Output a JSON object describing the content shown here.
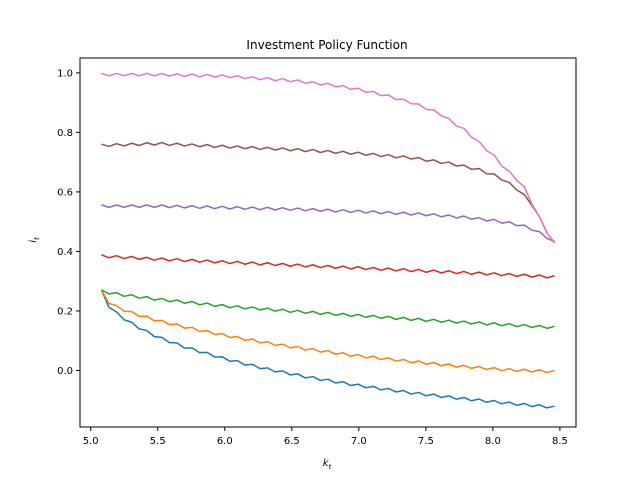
{
  "chart_data": {
    "type": "line",
    "title": "Investment Policy Function",
    "xlabel_main": "k",
    "xlabel_sub": "t",
    "ylabel_main": "i",
    "ylabel_sub": "t",
    "xlim": [
      4.92,
      8.62
    ],
    "ylim": [
      -0.19,
      1.05
    ],
    "xticks": [
      5.0,
      5.5,
      6.0,
      6.5,
      7.0,
      7.5,
      8.0,
      8.5
    ],
    "xtick_labels": [
      "5.0",
      "5.5",
      "6.0",
      "6.5",
      "7.0",
      "7.5",
      "8.0",
      "8.5"
    ],
    "yticks": [
      0.0,
      0.2,
      0.4,
      0.6,
      0.8,
      1.0
    ],
    "ytick_labels": [
      "0.0",
      "0.2",
      "0.4",
      "0.6",
      "0.8",
      "1.0"
    ],
    "grid": false,
    "legend": "none",
    "series": [
      {
        "color": "#1f77b4",
        "x": [
          5.08,
          5.1,
          5.15,
          5.2,
          5.3,
          5.4,
          5.5,
          5.7,
          6.0,
          6.3,
          6.6,
          7.0,
          7.4,
          7.8,
          8.2,
          8.46
        ],
        "y": [
          0.262,
          0.23,
          0.205,
          0.185,
          0.155,
          0.13,
          0.108,
          0.075,
          0.035,
          0.002,
          -0.025,
          -0.055,
          -0.08,
          -0.1,
          -0.118,
          -0.128
        ]
      },
      {
        "color": "#ff7f0e",
        "x": [
          5.08,
          5.1,
          5.15,
          5.2,
          5.3,
          5.5,
          5.8,
          6.1,
          6.5,
          6.9,
          7.3,
          7.7,
          8.1,
          8.46
        ],
        "y": [
          0.262,
          0.238,
          0.22,
          0.208,
          0.19,
          0.163,
          0.132,
          0.105,
          0.075,
          0.05,
          0.03,
          0.012,
          -0.002,
          -0.008
        ]
      },
      {
        "color": "#2ca02c",
        "x": [
          5.08,
          5.2,
          5.5,
          6.0,
          6.5,
          7.0,
          7.5,
          8.0,
          8.46
        ],
        "y": [
          0.262,
          0.252,
          0.235,
          0.212,
          0.195,
          0.18,
          0.165,
          0.152,
          0.14
        ]
      },
      {
        "color": "#d62728",
        "x": [
          5.08,
          5.5,
          6.0,
          6.5,
          7.0,
          7.5,
          8.0,
          8.46
        ],
        "y": [
          0.38,
          0.37,
          0.36,
          0.35,
          0.34,
          0.33,
          0.32,
          0.31
        ]
      },
      {
        "color": "#9467bd",
        "x": [
          5.08,
          5.5,
          6.0,
          6.5,
          7.0,
          7.5,
          7.8,
          8.0,
          8.2,
          8.3,
          8.4,
          8.46
        ],
        "y": [
          0.548,
          0.548,
          0.543,
          0.538,
          0.53,
          0.52,
          0.51,
          0.5,
          0.485,
          0.47,
          0.445,
          0.425
        ]
      },
      {
        "color": "#8c564b",
        "x": [
          5.08,
          5.5,
          6.0,
          6.5,
          7.0,
          7.4,
          7.7,
          7.9,
          8.05,
          8.2,
          8.3,
          8.38,
          8.46
        ],
        "y": [
          0.752,
          0.758,
          0.748,
          0.738,
          0.725,
          0.71,
          0.69,
          0.67,
          0.645,
          0.6,
          0.55,
          0.48,
          0.42
        ]
      },
      {
        "color": "#e377c2",
        "x": [
          5.08,
          5.5,
          6.0,
          6.5,
          6.8,
          7.0,
          7.2,
          7.4,
          7.6,
          7.8,
          8.0,
          8.1,
          8.2,
          8.25,
          8.3,
          8.38,
          8.46
        ],
        "y": [
          0.99,
          0.99,
          0.985,
          0.97,
          0.955,
          0.94,
          0.92,
          0.895,
          0.86,
          0.8,
          0.72,
          0.67,
          0.63,
          0.6,
          0.55,
          0.48,
          0.42
        ]
      }
    ]
  }
}
